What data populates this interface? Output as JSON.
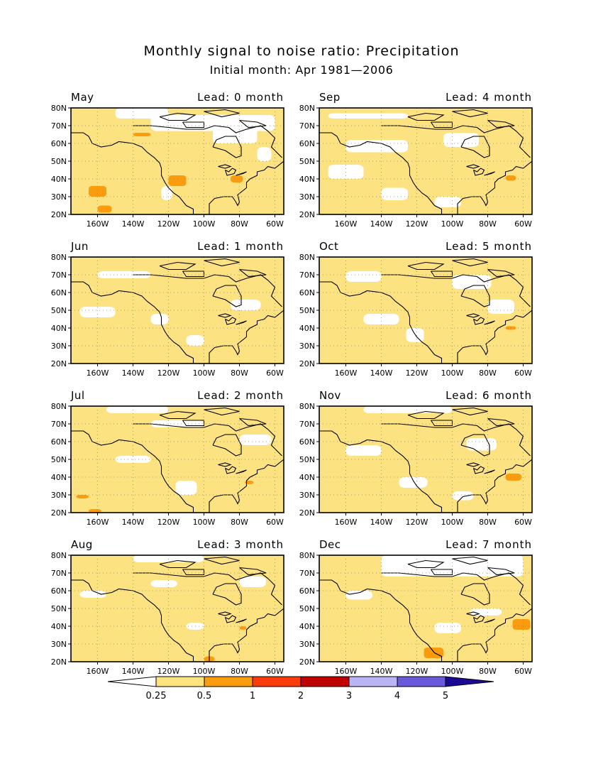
{
  "header": {
    "title": "Monthly signal to noise ratio: Precipitation",
    "subtitle": "Initial month: Apr 1981—2006"
  },
  "axes": {
    "lat_labels": [
      "80N",
      "70N",
      "60N",
      "50N",
      "40N",
      "30N",
      "20N"
    ],
    "lon_labels": [
      "160W",
      "140W",
      "120W",
      "100W",
      "80W",
      "60W"
    ]
  },
  "panels": [
    {
      "month": "May",
      "lead": "Lead: 0 month"
    },
    {
      "month": "Sep",
      "lead": "Lead: 4 month"
    },
    {
      "month": "Jun",
      "lead": "Lead: 1 month"
    },
    {
      "month": "Oct",
      "lead": "Lead: 5 month"
    },
    {
      "month": "Jul",
      "lead": "Lead: 2 month"
    },
    {
      "month": "Nov",
      "lead": "Lead: 6 month"
    },
    {
      "month": "Aug",
      "lead": "Lead: 3 month"
    },
    {
      "month": "Dec",
      "lead": "Lead: 7 month"
    }
  ],
  "colorbar": {
    "labels": [
      "0.25",
      "0.5",
      "1",
      "2",
      "3",
      "4",
      "5"
    ],
    "colors": [
      "#ffffff",
      "#fde282",
      "#fa9c0e",
      "#fc3b0c",
      "#c00000",
      "#bbb4f5",
      "#6a59db",
      "#1c0a96"
    ]
  },
  "colors": {
    "low": "#fde282",
    "medium": "#fa9c0e",
    "none": "#ffffff"
  }
}
